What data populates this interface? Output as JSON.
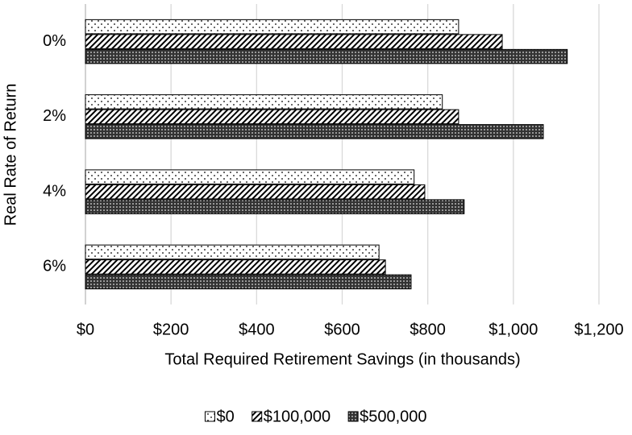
{
  "chart_data": {
    "type": "hbar",
    "x_label": "Total Required Retirement Savings (in thousands)",
    "y_label": "Real Rate of Return",
    "categories": [
      "0%",
      "2%",
      "4%",
      "6%"
    ],
    "series": [
      {
        "name": "$0",
        "color": "#000000",
        "pattern": "dots",
        "values": [
          872,
          834,
          768,
          686
        ]
      },
      {
        "name": "$100,000",
        "color": "#000000",
        "pattern": "diagonal",
        "values": [
          974,
          872,
          793,
          701
        ]
      },
      {
        "name": "$500,000",
        "color": "#000000",
        "pattern": "crosshatch",
        "values": [
          1126,
          1070,
          885,
          761
        ]
      }
    ],
    "xlim": [
      0,
      1200
    ],
    "xticks": [
      {
        "value": 0,
        "label": "$0"
      },
      {
        "value": 200,
        "label": "$200"
      },
      {
        "value": 400,
        "label": "$400"
      },
      {
        "value": 600,
        "label": "$600"
      },
      {
        "value": 800,
        "label": "$800"
      },
      {
        "value": 1000,
        "label": "$1,000"
      },
      {
        "value": 1200,
        "label": "$1,200"
      }
    ],
    "grid": true,
    "legend": "bottom"
  }
}
